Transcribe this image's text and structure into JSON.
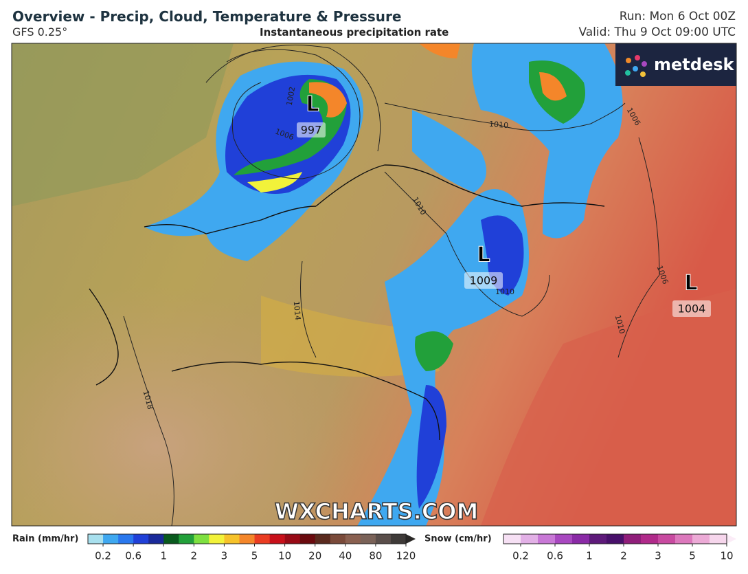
{
  "header": {
    "title": "Overview - Precip, Cloud, Temperature & Pressure",
    "model": "GFS 0.25°",
    "subtitle": "Instantaneous precipitation rate",
    "run": "Run: Mon 6 Oct 00Z",
    "valid": "Valid: Thu 9 Oct 09:00 UTC"
  },
  "logo": "metdesk",
  "watermark": "WXCHARTS.COM",
  "map": {
    "lows": [
      {
        "symbol": "L",
        "pressure": "997"
      },
      {
        "symbol": "L",
        "pressure": "1009"
      },
      {
        "symbol": "L",
        "pressure": "1004"
      }
    ],
    "isobar_labels": [
      "1002",
      "1006",
      "1010",
      "1010",
      "1010",
      "1006",
      "1006",
      "1010",
      "1014",
      "1018"
    ]
  },
  "legend": {
    "rain": {
      "label": "Rain (mm/hr)",
      "ticks": [
        0.2,
        0.6,
        1,
        2,
        3,
        5,
        10,
        20,
        40,
        80,
        120
      ],
      "colors": [
        "#a8e0ee",
        "#3fa8f0",
        "#2a78ee",
        "#2040d8",
        "#1a2a9a",
        "#0a5a1e",
        "#22a03a",
        "#7ee040",
        "#f2f23a",
        "#f6c22a",
        "#f4862a",
        "#ea3c22",
        "#c8101a",
        "#980a16",
        "#6a0a0e",
        "#5a2a1e",
        "#7a4a3a",
        "#8a6050",
        "#7a6258",
        "#5a4e4a",
        "#3e3a38",
        "#2a2826"
      ]
    },
    "snow": {
      "label": "Snow (cm/hr)",
      "ticks": [
        0.2,
        0.6,
        1,
        2,
        3,
        5,
        10
      ],
      "colors": [
        "#f6e0f4",
        "#e2b0e6",
        "#c878d6",
        "#a848c0",
        "#8a2aa6",
        "#5e1a7a",
        "#48106a",
        "#901e7a",
        "#b02a8a",
        "#c84aa0",
        "#dc78bc",
        "#ecaad6",
        "#f6d6ec",
        "#fbecf7"
      ]
    }
  }
}
